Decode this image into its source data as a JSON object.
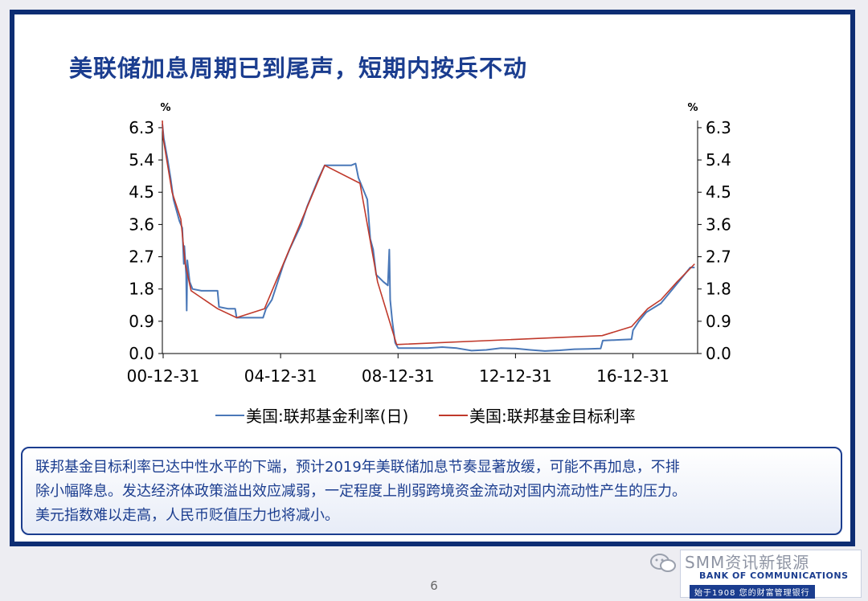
{
  "slide": {
    "title": "美联储加息周期已到尾声，短期内按兵不动",
    "summary_lines": [
      "联邦基金目标利率已达中性水平的下端，预计2019年美联储加息节奏显著放缓，可能不再加息，不排",
      "除小幅降息。发达经济体政策溢出效应减弱，一定程度上削弱跨境资金流动对国内流动性产生的压力。",
      "美元指数难以走高，人民币贬值压力也将减小。"
    ],
    "page_number": "6"
  },
  "footer": {
    "watermark": "SMM资讯新银源",
    "bank_name_en": "BANK OF COMMUNICATIONS",
    "slogan": "始于1908 您的财富管理银行"
  },
  "chart_data": {
    "type": "line",
    "y_unit_left": "%",
    "y_unit_right": "%",
    "yticks": [
      "0.0",
      "0.9",
      "1.8",
      "2.7",
      "3.6",
      "4.5",
      "5.4",
      "6.3"
    ],
    "ylim": [
      0,
      6.5
    ],
    "xlim": [
      2000.97,
      2019.2
    ],
    "xticks": [
      {
        "label": "00-12-31",
        "x": 2000.997
      },
      {
        "label": "04-12-31",
        "x": 2004.997
      },
      {
        "label": "08-12-31",
        "x": 2008.997
      },
      {
        "label": "12-12-31",
        "x": 2012.997
      },
      {
        "label": "16-12-31",
        "x": 2016.997
      }
    ],
    "legend_position": "bottom",
    "series": [
      {
        "name": "美国:联邦基金利率(日)",
        "color": "#4a78b8",
        "points": [
          [
            2000.97,
            6.4
          ],
          [
            2001.02,
            6.0
          ],
          [
            2001.15,
            5.4
          ],
          [
            2001.25,
            4.9
          ],
          [
            2001.35,
            4.3
          ],
          [
            2001.45,
            4.0
          ],
          [
            2001.55,
            3.7
          ],
          [
            2001.65,
            3.5
          ],
          [
            2001.7,
            2.5
          ],
          [
            2001.72,
            3.0
          ],
          [
            2001.78,
            2.2
          ],
          [
            2001.8,
            1.2
          ],
          [
            2001.82,
            2.6
          ],
          [
            2001.9,
            2.0
          ],
          [
            2002.0,
            1.8
          ],
          [
            2002.3,
            1.75
          ],
          [
            2002.6,
            1.75
          ],
          [
            2002.85,
            1.75
          ],
          [
            2002.9,
            1.3
          ],
          [
            2003.2,
            1.25
          ],
          [
            2003.45,
            1.25
          ],
          [
            2003.5,
            1.0
          ],
          [
            2003.8,
            1.0
          ],
          [
            2004.0,
            1.0
          ],
          [
            2004.4,
            1.0
          ],
          [
            2004.5,
            1.25
          ],
          [
            2004.7,
            1.5
          ],
          [
            2004.9,
            2.0
          ],
          [
            2005.1,
            2.5
          ],
          [
            2005.3,
            2.9
          ],
          [
            2005.5,
            3.25
          ],
          [
            2005.7,
            3.6
          ],
          [
            2005.9,
            4.1
          ],
          [
            2006.1,
            4.5
          ],
          [
            2006.3,
            4.9
          ],
          [
            2006.5,
            5.25
          ],
          [
            2006.8,
            5.25
          ],
          [
            2007.1,
            5.25
          ],
          [
            2007.4,
            5.25
          ],
          [
            2007.55,
            5.3
          ],
          [
            2007.65,
            4.9
          ],
          [
            2007.8,
            4.6
          ],
          [
            2007.95,
            4.3
          ],
          [
            2008.05,
            3.2
          ],
          [
            2008.15,
            2.9
          ],
          [
            2008.25,
            2.2
          ],
          [
            2008.5,
            2.0
          ],
          [
            2008.65,
            1.9
          ],
          [
            2008.7,
            2.9
          ],
          [
            2008.73,
            1.5
          ],
          [
            2008.8,
            0.9
          ],
          [
            2008.9,
            0.3
          ],
          [
            2009.0,
            0.15
          ],
          [
            2009.5,
            0.15
          ],
          [
            2010.0,
            0.15
          ],
          [
            2010.5,
            0.18
          ],
          [
            2011.0,
            0.15
          ],
          [
            2011.5,
            0.08
          ],
          [
            2012.0,
            0.1
          ],
          [
            2012.5,
            0.15
          ],
          [
            2013.0,
            0.14
          ],
          [
            2013.5,
            0.1
          ],
          [
            2014.0,
            0.07
          ],
          [
            2014.5,
            0.09
          ],
          [
            2015.0,
            0.12
          ],
          [
            2015.5,
            0.13
          ],
          [
            2015.9,
            0.14
          ],
          [
            2015.97,
            0.36
          ],
          [
            2016.5,
            0.38
          ],
          [
            2016.95,
            0.4
          ],
          [
            2017.0,
            0.65
          ],
          [
            2017.2,
            0.9
          ],
          [
            2017.45,
            1.15
          ],
          [
            2017.95,
            1.4
          ],
          [
            2018.2,
            1.65
          ],
          [
            2018.45,
            1.9
          ],
          [
            2018.7,
            2.15
          ],
          [
            2018.95,
            2.4
          ],
          [
            2019.1,
            2.4
          ]
        ]
      },
      {
        "name": "美国:联邦基金目标利率",
        "color": "#c0392b",
        "points": [
          [
            2000.97,
            6.5
          ],
          [
            2001.0,
            6.0
          ],
          [
            2001.3,
            4.5
          ],
          [
            2001.6,
            3.75
          ],
          [
            2001.75,
            2.5
          ],
          [
            2001.95,
            1.75
          ],
          [
            2002.85,
            1.25
          ],
          [
            2003.5,
            1.0
          ],
          [
            2004.45,
            1.25
          ],
          [
            2006.5,
            5.25
          ],
          [
            2007.7,
            4.75
          ],
          [
            2008.3,
            2.0
          ],
          [
            2008.95,
            0.25
          ],
          [
            2015.95,
            0.5
          ],
          [
            2016.95,
            0.75
          ],
          [
            2017.5,
            1.25
          ],
          [
            2017.95,
            1.5
          ],
          [
            2018.5,
            2.0
          ],
          [
            2019.1,
            2.5
          ]
        ]
      }
    ]
  }
}
